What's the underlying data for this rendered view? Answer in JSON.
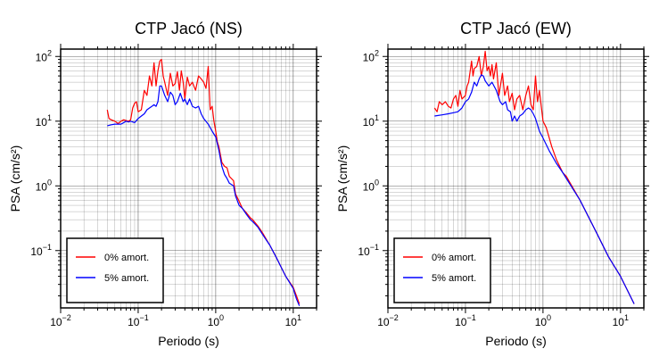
{
  "chart_data": [
    {
      "type": "line",
      "title": "CTP Jacó (NS)",
      "xlabel": "Periodo (s)",
      "ylabel": "PSA (cm/s²)",
      "x_scale": "log",
      "y_scale": "log",
      "xlim": [
        0.01,
        20
      ],
      "ylim": [
        0.013,
        130
      ],
      "grid": true,
      "legend_position": "bottom-left",
      "x_ticks": [
        {
          "value": 0.01,
          "base": "10",
          "exp": "−2"
        },
        {
          "value": 0.1,
          "base": "10",
          "exp": "−1"
        },
        {
          "value": 1,
          "base": "10",
          "exp": "0"
        },
        {
          "value": 10,
          "base": "10",
          "exp": "1"
        }
      ],
      "y_ticks": [
        {
          "value": 0.1,
          "base": "10",
          "exp": "−1"
        },
        {
          "value": 1,
          "base": "10",
          "exp": "0"
        },
        {
          "value": 10,
          "base": "10",
          "exp": "1"
        },
        {
          "value": 100,
          "base": "10",
          "exp": "2"
        }
      ],
      "series": [
        {
          "name": "0% amort.",
          "color": "#ff0000",
          "x": [
            0.04,
            0.042,
            0.045,
            0.05,
            0.055,
            0.06,
            0.065,
            0.07,
            0.075,
            0.08,
            0.085,
            0.09,
            0.095,
            0.1,
            0.11,
            0.12,
            0.13,
            0.14,
            0.15,
            0.16,
            0.17,
            0.18,
            0.19,
            0.2,
            0.21,
            0.22,
            0.24,
            0.26,
            0.28,
            0.3,
            0.32,
            0.34,
            0.36,
            0.38,
            0.4,
            0.43,
            0.46,
            0.5,
            0.55,
            0.6,
            0.65,
            0.7,
            0.75,
            0.8,
            0.85,
            0.9,
            0.95,
            1.0,
            1.05,
            1.1,
            1.2,
            1.3,
            1.4,
            1.5,
            1.7,
            1.8,
            2.0,
            2.2,
            2.5,
            2.8,
            3.0,
            3.5,
            4.0,
            5.0,
            6.0,
            7.0,
            8.0,
            10.0,
            11.0,
            12.0
          ],
          "y": [
            15,
            11,
            10.5,
            10,
            9.2,
            10,
            10.5,
            10.2,
            10,
            10.5,
            16,
            19,
            20,
            14,
            15,
            30,
            25,
            50,
            35,
            80,
            35,
            60,
            85,
            90,
            50,
            40,
            25,
            55,
            35,
            38,
            58,
            30,
            60,
            40,
            22,
            48,
            35,
            40,
            30,
            50,
            45,
            40,
            32,
            70,
            15,
            17,
            10,
            7,
            4.8,
            4,
            2.3,
            2,
            1.9,
            1.4,
            1.2,
            0.75,
            0.58,
            0.45,
            0.38,
            0.32,
            0.3,
            0.24,
            0.19,
            0.12,
            0.08,
            0.055,
            0.04,
            0.027,
            0.02,
            0.015
          ]
        },
        {
          "name": "5% amort.",
          "color": "#0000ff",
          "x": [
            0.04,
            0.045,
            0.05,
            0.06,
            0.07,
            0.075,
            0.08,
            0.09,
            0.1,
            0.11,
            0.12,
            0.13,
            0.14,
            0.15,
            0.16,
            0.17,
            0.18,
            0.19,
            0.2,
            0.22,
            0.24,
            0.26,
            0.28,
            0.3,
            0.32,
            0.35,
            0.38,
            0.4,
            0.43,
            0.46,
            0.5,
            0.55,
            0.6,
            0.65,
            0.7,
            0.8,
            0.9,
            1.0,
            1.05,
            1.1,
            1.2,
            1.3,
            1.4,
            1.5,
            1.7,
            1.8,
            2.0,
            2.2,
            2.5,
            2.8,
            3.0,
            3.5,
            4.0,
            5.0,
            6.0,
            7.0,
            8.0,
            10.0,
            11.0,
            12.0
          ],
          "y": [
            8.5,
            8.8,
            9,
            9,
            10,
            9.7,
            10,
            9.5,
            11,
            12,
            13,
            15,
            16,
            17,
            18,
            17,
            20,
            35,
            35,
            25,
            20,
            28,
            25,
            18,
            20,
            27,
            20,
            22,
            18,
            22,
            17,
            16,
            17,
            13,
            11,
            9,
            7,
            5.7,
            4.5,
            3.5,
            2,
            1.5,
            1.3,
            1.1,
            1.0,
            0.7,
            0.5,
            0.45,
            0.36,
            0.3,
            0.28,
            0.23,
            0.18,
            0.12,
            0.08,
            0.055,
            0.04,
            0.026,
            0.018,
            0.014
          ]
        }
      ]
    },
    {
      "type": "line",
      "title": "CTP Jacó (EW)",
      "xlabel": "Periodo (s)",
      "ylabel": "PSA (cm/s²)",
      "x_scale": "log",
      "y_scale": "log",
      "xlim": [
        0.01,
        20
      ],
      "ylim": [
        0.013,
        130
      ],
      "grid": true,
      "legend_position": "bottom-left",
      "x_ticks": [
        {
          "value": 0.01,
          "base": "10",
          "exp": "−2"
        },
        {
          "value": 0.1,
          "base": "10",
          "exp": "−1"
        },
        {
          "value": 1,
          "base": "10",
          "exp": "0"
        },
        {
          "value": 10,
          "base": "10",
          "exp": "1"
        }
      ],
      "y_ticks": [
        {
          "value": 0.1,
          "base": "10",
          "exp": "−1"
        },
        {
          "value": 1,
          "base": "10",
          "exp": "0"
        },
        {
          "value": 10,
          "base": "10",
          "exp": "1"
        },
        {
          "value": 100,
          "base": "10",
          "exp": "2"
        }
      ],
      "series": [
        {
          "name": "0% amort.",
          "color": "#ff0000",
          "x": [
            0.04,
            0.043,
            0.046,
            0.05,
            0.055,
            0.06,
            0.065,
            0.07,
            0.075,
            0.08,
            0.085,
            0.09,
            0.1,
            0.105,
            0.11,
            0.12,
            0.125,
            0.13,
            0.14,
            0.15,
            0.16,
            0.17,
            0.18,
            0.19,
            0.2,
            0.21,
            0.22,
            0.23,
            0.25,
            0.27,
            0.3,
            0.32,
            0.35,
            0.37,
            0.4,
            0.43,
            0.46,
            0.5,
            0.55,
            0.6,
            0.65,
            0.7,
            0.75,
            0.8,
            0.85,
            0.9,
            1.0,
            1.1,
            1.3,
            1.5,
            1.8,
            2.0,
            3.0,
            5.0,
            7.0,
            10.0,
            15.0
          ],
          "y": [
            16,
            14,
            20,
            18,
            20,
            17,
            16,
            22,
            25,
            17,
            30,
            22,
            25,
            35,
            40,
            85,
            50,
            65,
            70,
            100,
            50,
            70,
            120,
            60,
            70,
            50,
            75,
            45,
            80,
            25,
            55,
            25,
            35,
            20,
            27,
            15,
            22,
            25,
            15,
            25,
            35,
            18,
            15,
            50,
            20,
            30,
            10,
            8,
            4,
            2.5,
            1.6,
            1.4,
            0.6,
            0.18,
            0.08,
            0.04,
            0.015
          ]
        },
        {
          "name": "5% amort.",
          "color": "#0000ff",
          "x": [
            0.04,
            0.05,
            0.06,
            0.07,
            0.08,
            0.09,
            0.1,
            0.11,
            0.12,
            0.13,
            0.14,
            0.15,
            0.16,
            0.17,
            0.18,
            0.2,
            0.22,
            0.25,
            0.28,
            0.3,
            0.33,
            0.35,
            0.38,
            0.4,
            0.43,
            0.46,
            0.5,
            0.55,
            0.6,
            0.65,
            0.7,
            0.75,
            0.8,
            0.9,
            1.0,
            1.2,
            1.5,
            1.8,
            2.0,
            3.0,
            5.0,
            7.0,
            10.0,
            15.0
          ],
          "y": [
            12,
            12.5,
            13,
            13.5,
            14,
            16,
            20,
            22,
            28,
            40,
            35,
            45,
            52,
            50,
            42,
            35,
            40,
            30,
            20,
            18,
            20,
            15,
            14,
            10,
            12,
            10,
            12,
            13,
            15,
            16,
            15,
            13,
            11,
            7,
            5.5,
            3.5,
            2.2,
            1.6,
            1.3,
            0.6,
            0.18,
            0.08,
            0.04,
            0.015
          ]
        }
      ]
    }
  ]
}
